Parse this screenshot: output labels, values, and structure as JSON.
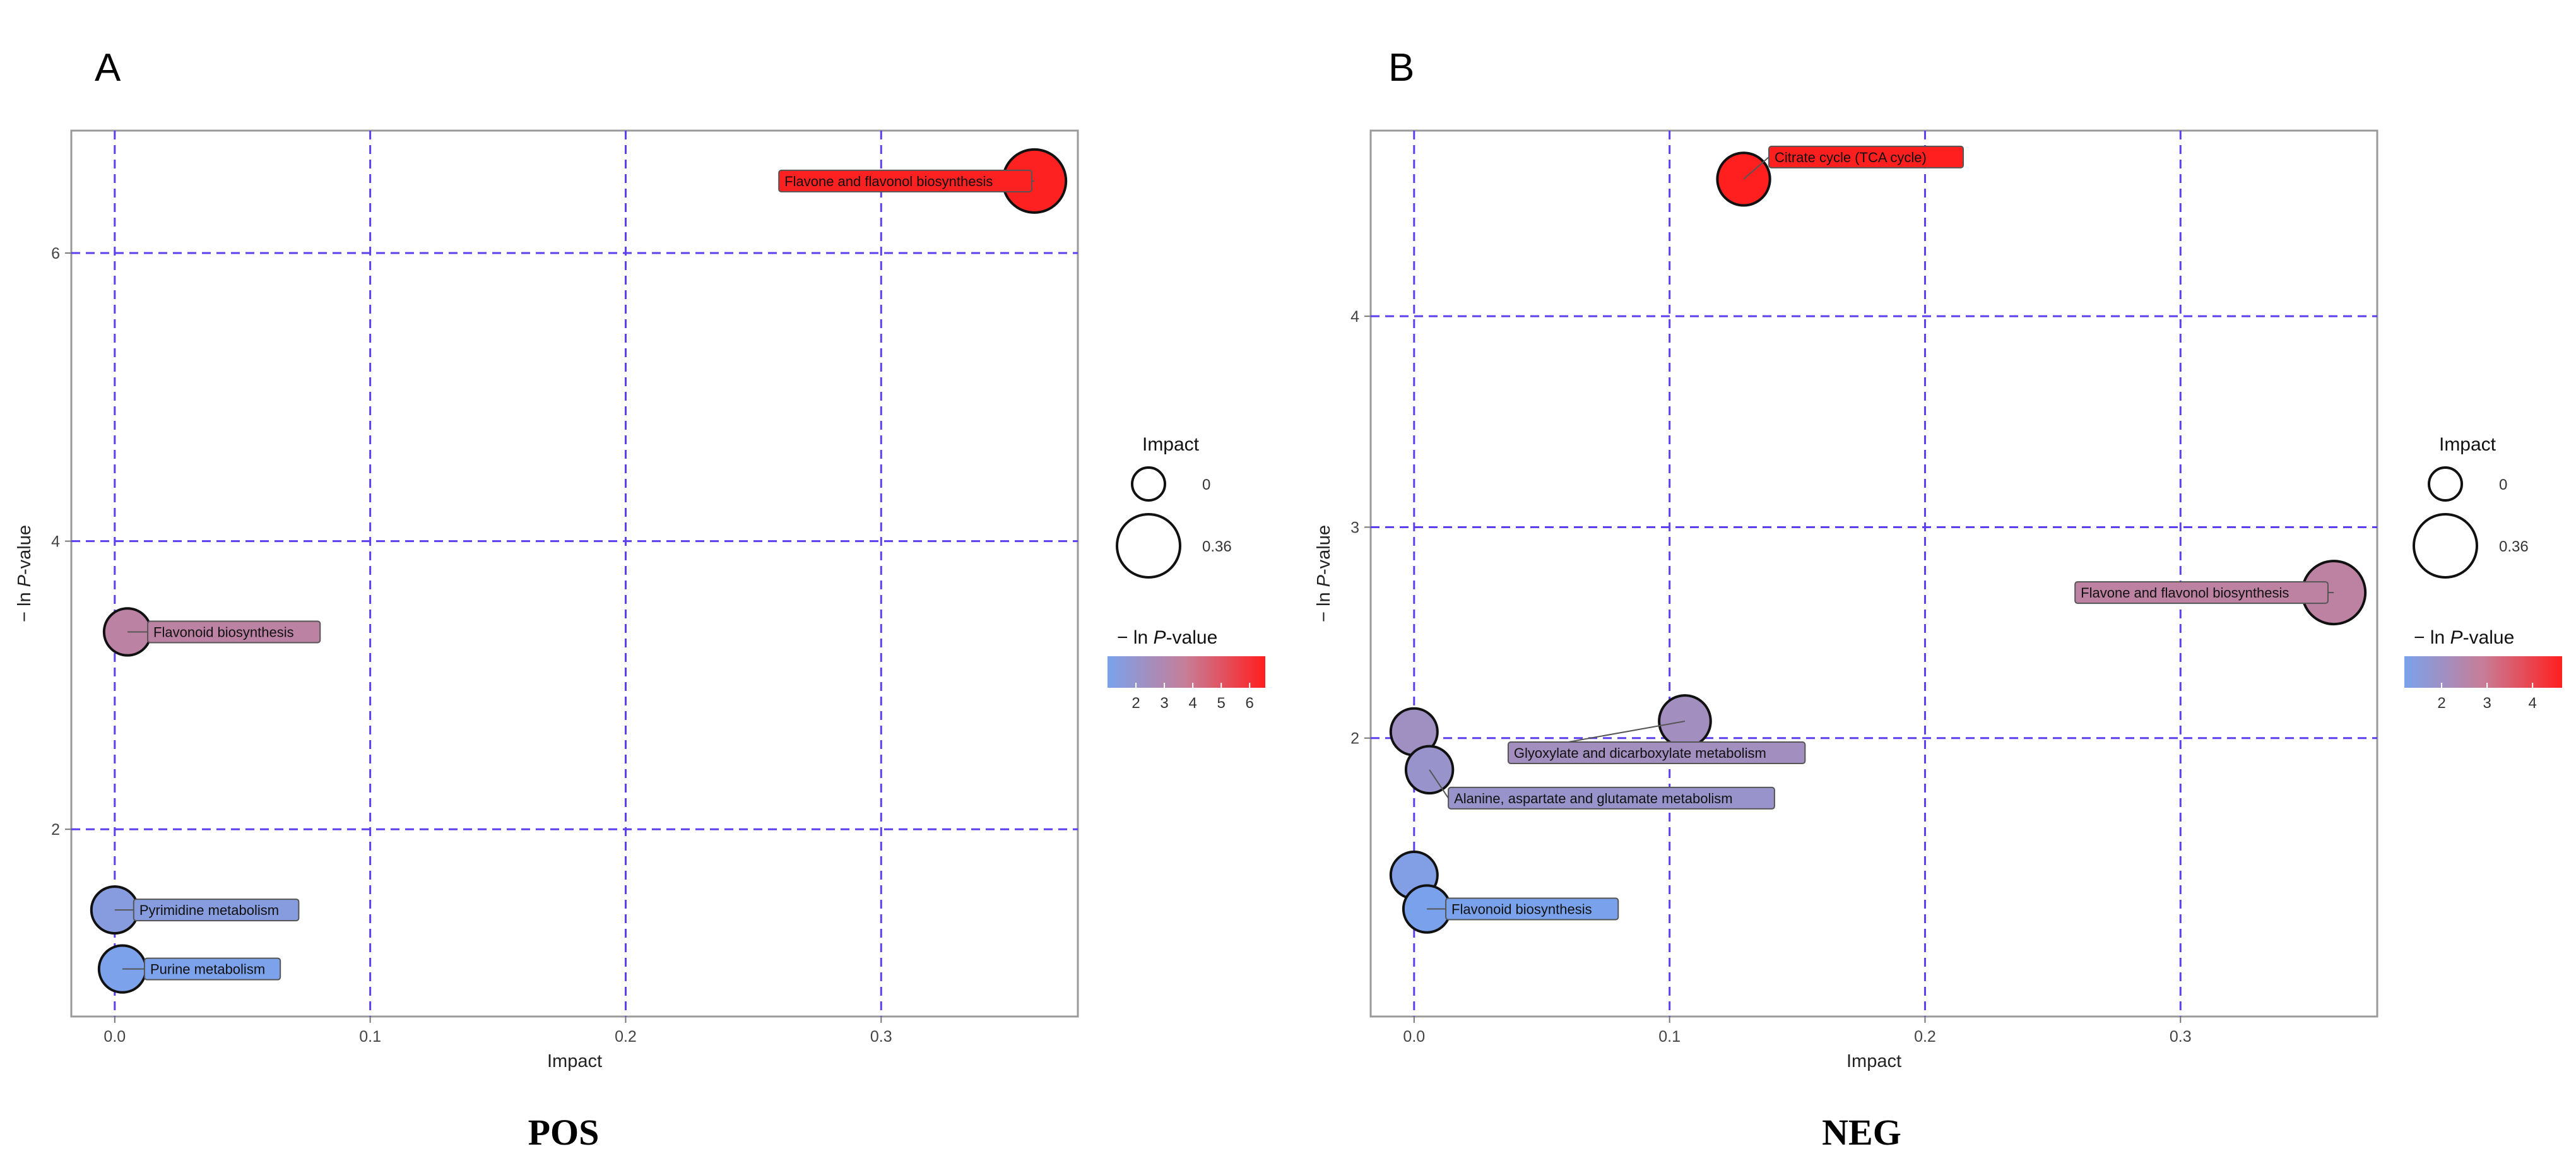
{
  "chart_data": [
    {
      "type": "scatter",
      "panel_label": "A",
      "caption": "POS",
      "xlabel": "Impact",
      "ylabel_prefix": "− ln ",
      "ylabel_italic": "P",
      "ylabel_suffix": "-value",
      "xlim": [
        -0.017,
        0.377
      ],
      "ylim": [
        0.7,
        6.85
      ],
      "xticks": [
        0.0,
        0.1,
        0.2,
        0.3
      ],
      "xtick_labels": [
        "0.0",
        "0.1",
        "0.2",
        "0.3"
      ],
      "yticks": [
        2,
        4,
        6
      ],
      "ytick_labels": [
        "2",
        "4",
        "6"
      ],
      "grid": "dashed",
      "color_range": [
        1.0,
        6.55
      ],
      "points": [
        {
          "label": "Flavone and flavonol biosynthesis",
          "impact": 0.36,
          "neglogp": 6.5
        },
        {
          "label": "Flavonoid biosynthesis",
          "impact": 0.005,
          "neglogp": 3.37
        },
        {
          "label": "Pyrimidine metabolism",
          "impact": 0.0,
          "neglogp": 1.44
        },
        {
          "label": "Purine metabolism",
          "impact": 0.003,
          "neglogp": 1.03
        }
      ],
      "legend": {
        "size_title": "Impact",
        "size_values": [
          "0",
          "0.36"
        ],
        "color_title_prefix": "− ln ",
        "color_title_italic": "P",
        "color_title_suffix": "-value",
        "color_ticks": [
          "2",
          "3",
          "4",
          "5",
          "6"
        ],
        "color_tick_values": [
          2,
          3,
          4,
          5,
          6
        ],
        "color_low": "#7aa2ec",
        "color_high": "#ff1f1f",
        "color_mid": "#c77d97"
      }
    },
    {
      "type": "scatter",
      "panel_label": "B",
      "caption": "NEG",
      "xlabel": "Impact",
      "ylabel_prefix": "− ln ",
      "ylabel_italic": "P",
      "ylabel_suffix": "-value",
      "xlim": [
        -0.017,
        0.377
      ],
      "ylim": [
        0.68,
        4.88
      ],
      "xticks": [
        0.0,
        0.1,
        0.2,
        0.3
      ],
      "xtick_labels": [
        "0.0",
        "0.1",
        "0.2",
        "0.3"
      ],
      "yticks": [
        2,
        3,
        4
      ],
      "ytick_labels": [
        "2",
        "3",
        "4"
      ],
      "grid": "dashed",
      "color_range": [
        1.18,
        4.65
      ],
      "points": [
        {
          "label": "Citrate cycle (TCA cycle)",
          "impact": 0.129,
          "neglogp": 4.65
        },
        {
          "label": "Flavone and flavonol biosynthesis",
          "impact": 0.36,
          "neglogp": 2.69
        },
        {
          "label": "Glyoxylate and dicarboxylate metabolism",
          "impact": 0.106,
          "neglogp": 2.08
        },
        {
          "label": "",
          "impact": 0.0,
          "neglogp": 2.03
        },
        {
          "label": "Alanine, aspartate and glutamate metabolism",
          "impact": 0.006,
          "neglogp": 1.85
        },
        {
          "label": "",
          "impact": 0.0,
          "neglogp": 1.35
        },
        {
          "label": "Flavonoid biosynthesis",
          "impact": 0.005,
          "neglogp": 1.19
        }
      ],
      "legend": {
        "size_title": "Impact",
        "size_values": [
          "0",
          "0.36"
        ],
        "color_title_prefix": "− ln ",
        "color_title_italic": "P",
        "color_title_suffix": "-value",
        "color_ticks": [
          "2",
          "3",
          "4"
        ],
        "color_tick_values": [
          2,
          3,
          4
        ],
        "color_low": "#7aa2ec",
        "color_high": "#ff1f1f",
        "color_mid": "#c77d97"
      }
    }
  ]
}
